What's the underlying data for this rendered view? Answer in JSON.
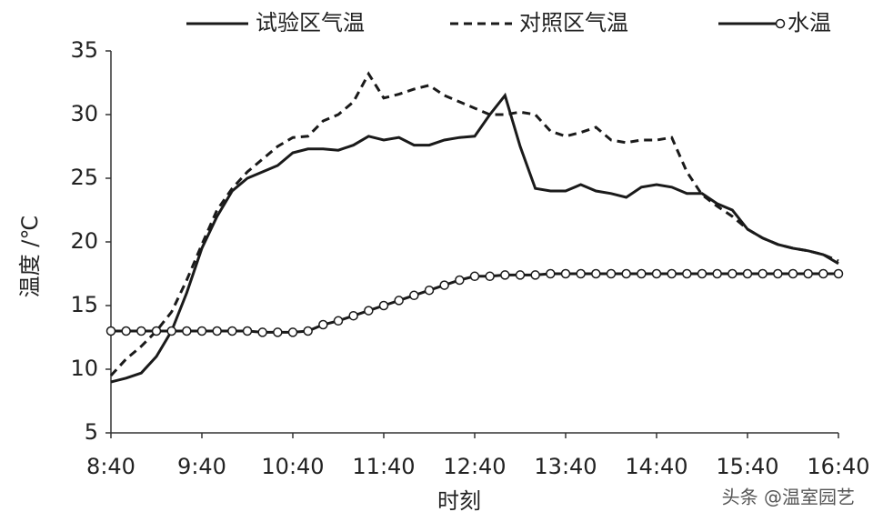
{
  "chart_data": {
    "type": "line",
    "x_label": "时刻",
    "y_label": "温度 /℃",
    "categories": [
      "8:40",
      null,
      null,
      null,
      null,
      null,
      "9:40",
      null,
      null,
      null,
      null,
      null,
      "10:40",
      null,
      null,
      null,
      null,
      null,
      "11:40",
      null,
      null,
      null,
      null,
      null,
      "12:40",
      null,
      null,
      null,
      null,
      null,
      "13:40",
      null,
      null,
      null,
      null,
      null,
      "14:40",
      null,
      null,
      null,
      null,
      null,
      "15:40",
      null,
      null,
      null,
      null,
      null,
      "16:40"
    ],
    "ylim": [
      5,
      35
    ],
    "yticks": [
      5,
      10,
      15,
      20,
      25,
      30,
      35
    ],
    "legend": "top",
    "series": [
      {
        "name": "试验区气温",
        "color": "#1a1a1a",
        "line_style": "solid",
        "values": [
          9.0,
          9.3,
          9.7,
          11,
          13,
          16,
          19.5,
          22,
          24,
          25,
          25.5,
          26,
          27,
          27.3,
          27.3,
          27.2,
          27.6,
          28.3,
          28.0,
          28.2,
          27.6,
          27.6,
          28.0,
          28.2,
          28.3,
          30.0,
          31.5,
          27.5,
          24.2,
          24.0,
          24.0,
          24.5,
          24.0,
          23.8,
          23.5,
          24.3,
          24.5,
          24.3,
          23.8,
          23.8,
          23.0,
          22.5,
          21.0,
          20.3,
          19.8,
          19.5,
          19.3,
          19.0,
          18.3
        ]
      },
      {
        "name": "对照区气温",
        "color": "#1a1a1a",
        "line_style": "dashed",
        "values": [
          9.5,
          10.8,
          11.8,
          13,
          14.5,
          17,
          19.8,
          22.5,
          24.2,
          25.5,
          26.5,
          27.5,
          28.2,
          28.3,
          29.5,
          30,
          31,
          33.2,
          31.3,
          31.6,
          32.0,
          32.3,
          31.5,
          31.0,
          30.5,
          30.0,
          30.0,
          30.2,
          30.0,
          28.7,
          28.3,
          28.6,
          29.0,
          28.0,
          27.8,
          28.0,
          28.0,
          28.2,
          25.5,
          23.7,
          22.8,
          22.0,
          21.0,
          20.3,
          19.8,
          19.5,
          19.3,
          19.0,
          18.5
        ]
      },
      {
        "name": "水温",
        "color": "#1a1a1a",
        "line_style": "solid",
        "marker": "circle",
        "values": [
          13.0,
          13.0,
          13.0,
          13.0,
          13.0,
          13.0,
          13.0,
          13.0,
          13.0,
          13.0,
          12.9,
          12.9,
          12.9,
          13.0,
          13.5,
          13.8,
          14.2,
          14.6,
          15.0,
          15.4,
          15.8,
          16.2,
          16.6,
          17.0,
          17.3,
          17.3,
          17.4,
          17.4,
          17.4,
          17.5,
          17.5,
          17.5,
          17.5,
          17.5,
          17.5,
          17.5,
          17.5,
          17.5,
          17.5,
          17.5,
          17.5,
          17.5,
          17.5,
          17.5,
          17.5,
          17.5,
          17.5,
          17.5,
          17.5
        ]
      }
    ],
    "watermark": "头条 @温室园艺"
  }
}
